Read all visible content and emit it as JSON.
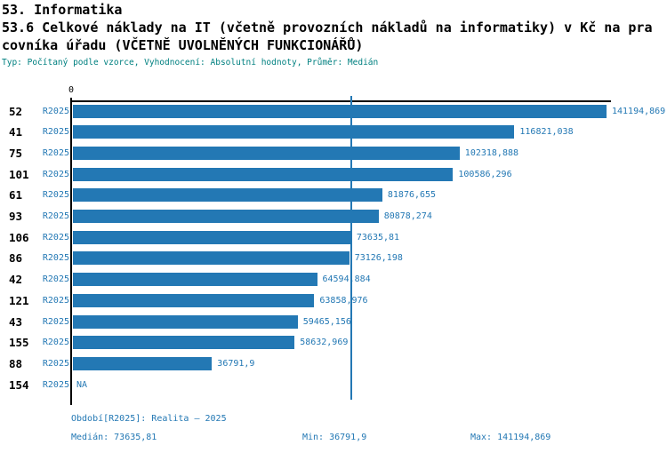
{
  "header": {
    "section_title": "53. Informatika",
    "subtitle_line1": "53.6 Celkové náklady na IT (včetně provozních nákladů na informatiky) v Kč na pra",
    "subtitle_line2": "covníka úřadu (VČETNĚ UVOLNĚNÝCH FUNKCIONÁŘŮ)",
    "meta": "Typ: Počítaný podle vzorce, Vyhodnocení: Absolutní hodnoty, Průměr: Medián"
  },
  "colors": {
    "bar_blue": "#2378b4",
    "label_blue": "#2378b4",
    "meta_teal": "#008080",
    "axis_black": "#000000"
  },
  "chart_data": {
    "type": "bar",
    "orientation": "horizontal",
    "title": "53.6 Celkové náklady na IT (včetně provozních nákladů na informatiky) v Kč na pracovníka úřadu (VČETNĚ UVOLNĚNÝCH FUNKCIONÁŘŮ)",
    "value_axis": {
      "zero_label": "0",
      "min": 0,
      "max": 141194.869,
      "gridlines": false
    },
    "median_value": 73635.81,
    "series_period": "R2025",
    "categories": [
      "52",
      "41",
      "75",
      "101",
      "61",
      "93",
      "106",
      "86",
      "42",
      "121",
      "43",
      "155",
      "88",
      "154"
    ],
    "rows": [
      {
        "office": "52",
        "period": "R2025",
        "value": 141194.869,
        "value_label": "141194,869"
      },
      {
        "office": "41",
        "period": "R2025",
        "value": 116821.038,
        "value_label": "116821,038"
      },
      {
        "office": "75",
        "period": "R2025",
        "value": 102318.888,
        "value_label": "102318,888"
      },
      {
        "office": "101",
        "period": "R2025",
        "value": 100586.296,
        "value_label": "100586,296"
      },
      {
        "office": "61",
        "period": "R2025",
        "value": 81876.655,
        "value_label": "81876,655"
      },
      {
        "office": "93",
        "period": "R2025",
        "value": 80878.274,
        "value_label": "80878,274"
      },
      {
        "office": "106",
        "period": "R2025",
        "value": 73635.81,
        "value_label": "73635,81"
      },
      {
        "office": "86",
        "period": "R2025",
        "value": 73126.198,
        "value_label": "73126,198"
      },
      {
        "office": "42",
        "period": "R2025",
        "value": 64594.884,
        "value_label": "64594,884"
      },
      {
        "office": "121",
        "period": "R2025",
        "value": 63858.976,
        "value_label": "63858,976"
      },
      {
        "office": "43",
        "period": "R2025",
        "value": 59465.156,
        "value_label": "59465,156"
      },
      {
        "office": "155",
        "period": "R2025",
        "value": 58632.969,
        "value_label": "58632,969"
      },
      {
        "office": "88",
        "period": "R2025",
        "value": 36791.9,
        "value_label": "36791,9"
      },
      {
        "office": "154",
        "period": "R2025",
        "value": null,
        "value_label": "NA"
      }
    ]
  },
  "footer": {
    "period_legend": "Období[R2025]: Realita – 2025",
    "median": "Medián: 73635,81",
    "min": "Min: 36791,9",
    "max": "Max: 141194,869"
  }
}
